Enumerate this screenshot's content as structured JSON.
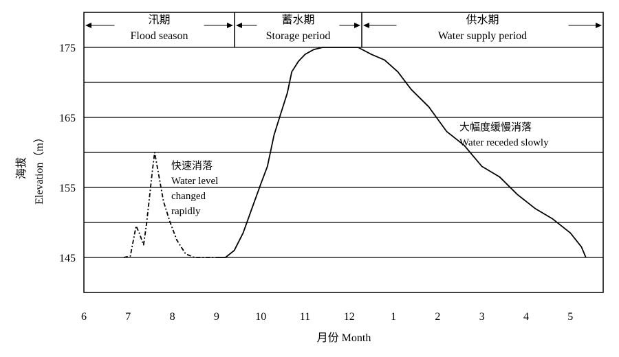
{
  "chart_data": {
    "type": "line",
    "xlabel": "月份 Month",
    "ylabel_cn": "海拔",
    "ylabel_en": "Elevation（m）",
    "x_ticks": [
      "6",
      "7",
      "8",
      "9",
      "10",
      "11",
      "12",
      "1",
      "2",
      "3",
      "4",
      "5"
    ],
    "y_ticks": [
      145,
      155,
      165,
      175
    ],
    "ylim": [
      140,
      180
    ],
    "grid": "horizontal every 5 m from 145 to 175",
    "periods": [
      {
        "cn": "汛期",
        "en": "Flood season"
      },
      {
        "cn": "蓄水期",
        "en": "Storage period"
      },
      {
        "cn": "供水期",
        "en": "Water supply period"
      }
    ],
    "annotations": [
      {
        "lines": [
          "快速消落",
          "Water level",
          "changed",
          "rapidly"
        ]
      },
      {
        "lines": [
          "大幅度缓慢消落",
          "Water receded slowly"
        ]
      }
    ],
    "series": [
      {
        "style": "dash-dot",
        "x": [
          6.9,
          7.05,
          7.18,
          7.25,
          7.35,
          7.42,
          7.55,
          7.6,
          7.7,
          7.8,
          7.95,
          8.1,
          8.3,
          8.5,
          9.0
        ],
        "y": [
          145,
          145.2,
          149.5,
          148.5,
          146.8,
          150.0,
          157.5,
          160.0,
          156.5,
          153.0,
          150.0,
          147.5,
          145.5,
          145.0,
          145.0
        ]
      },
      {
        "style": "solid",
        "x": [
          9.0,
          9.2,
          9.4,
          9.6,
          9.8,
          10.0,
          10.15,
          10.3,
          10.45,
          10.6,
          10.7,
          10.85,
          11.0,
          11.2,
          11.4,
          11.7,
          12.0,
          12.2,
          12.5,
          12.8,
          13.1,
          13.4,
          13.8,
          14.2,
          14.6,
          15.0,
          15.4,
          15.8,
          16.2,
          16.6,
          17.0,
          17.25,
          17.35
        ],
        "y": [
          145.0,
          145.0,
          146.0,
          148.5,
          152.0,
          155.5,
          158.0,
          162.5,
          165.5,
          168.5,
          171.5,
          173.0,
          174.0,
          174.7,
          175.0,
          175.0,
          175.0,
          175.0,
          174.0,
          173.2,
          171.5,
          169.0,
          166.5,
          163.0,
          161.0,
          158.0,
          156.5,
          154.0,
          152.0,
          150.5,
          148.5,
          146.5,
          145.0
        ]
      }
    ]
  }
}
